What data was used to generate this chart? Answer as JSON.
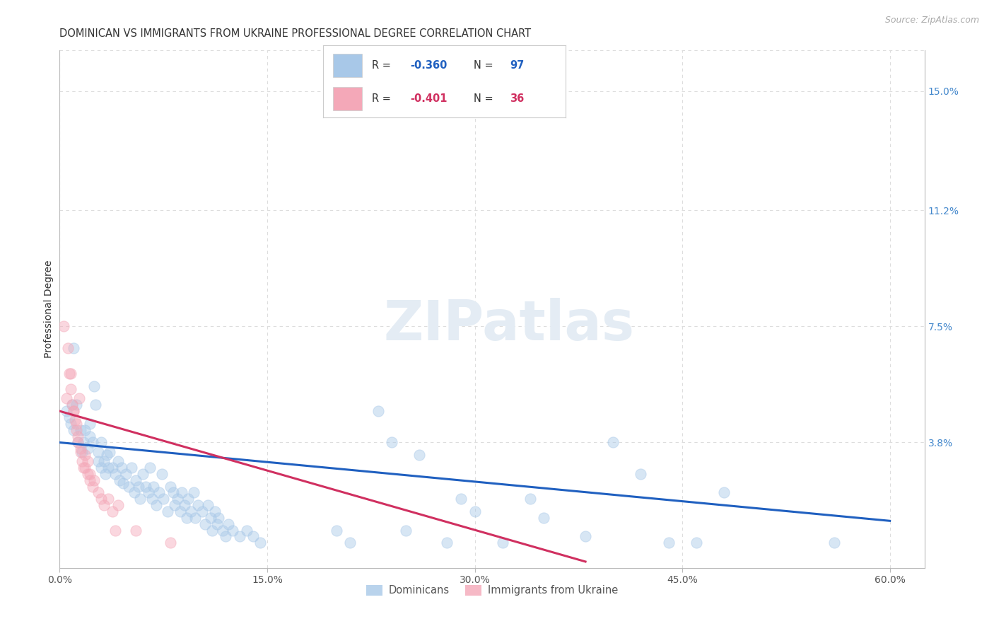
{
  "title": "DOMINICAN VS IMMIGRANTS FROM UKRAINE PROFESSIONAL DEGREE CORRELATION CHART",
  "source": "Source: ZipAtlas.com",
  "xlabel_ticks": [
    "0.0%",
    "15.0%",
    "30.0%",
    "45.0%",
    "60.0%"
  ],
  "xlabel_tick_vals": [
    0.0,
    0.15,
    0.3,
    0.45,
    0.6
  ],
  "ylabel": "Professional Degree",
  "ylabel_right_ticks": [
    "15.0%",
    "11.2%",
    "7.5%",
    "3.8%"
  ],
  "ylabel_right_vals": [
    0.15,
    0.112,
    0.075,
    0.038
  ],
  "xlim": [
    0.0,
    0.625
  ],
  "ylim": [
    -0.002,
    0.163
  ],
  "watermark": "ZIPatlas",
  "legend": {
    "series1_label": "Dominicans",
    "series1_R": "R = -0.360",
    "series1_N": "N = 97",
    "series1_color": "#a8c8e8",
    "series2_label": "Immigrants from Ukraine",
    "series2_R": "R = -0.401",
    "series2_N": "N = 36",
    "series2_color": "#f4a8b8"
  },
  "blue_scatter": [
    [
      0.005,
      0.048
    ],
    [
      0.007,
      0.046
    ],
    [
      0.008,
      0.044
    ],
    [
      0.009,
      0.05
    ],
    [
      0.01,
      0.068
    ],
    [
      0.01,
      0.042
    ],
    [
      0.012,
      0.05
    ],
    [
      0.013,
      0.038
    ],
    [
      0.015,
      0.042
    ],
    [
      0.016,
      0.035
    ],
    [
      0.017,
      0.038
    ],
    [
      0.018,
      0.042
    ],
    [
      0.02,
      0.036
    ],
    [
      0.022,
      0.044
    ],
    [
      0.022,
      0.04
    ],
    [
      0.024,
      0.038
    ],
    [
      0.025,
      0.056
    ],
    [
      0.026,
      0.05
    ],
    [
      0.028,
      0.032
    ],
    [
      0.028,
      0.035
    ],
    [
      0.03,
      0.03
    ],
    [
      0.03,
      0.038
    ],
    [
      0.032,
      0.032
    ],
    [
      0.033,
      0.028
    ],
    [
      0.034,
      0.034
    ],
    [
      0.035,
      0.03
    ],
    [
      0.036,
      0.035
    ],
    [
      0.038,
      0.03
    ],
    [
      0.04,
      0.028
    ],
    [
      0.042,
      0.032
    ],
    [
      0.043,
      0.026
    ],
    [
      0.045,
      0.03
    ],
    [
      0.046,
      0.025
    ],
    [
      0.048,
      0.028
    ],
    [
      0.05,
      0.024
    ],
    [
      0.052,
      0.03
    ],
    [
      0.054,
      0.022
    ],
    [
      0.055,
      0.026
    ],
    [
      0.057,
      0.024
    ],
    [
      0.058,
      0.02
    ],
    [
      0.06,
      0.028
    ],
    [
      0.062,
      0.024
    ],
    [
      0.064,
      0.022
    ],
    [
      0.065,
      0.03
    ],
    [
      0.067,
      0.02
    ],
    [
      0.068,
      0.024
    ],
    [
      0.07,
      0.018
    ],
    [
      0.072,
      0.022
    ],
    [
      0.074,
      0.028
    ],
    [
      0.075,
      0.02
    ],
    [
      0.078,
      0.016
    ],
    [
      0.08,
      0.024
    ],
    [
      0.082,
      0.022
    ],
    [
      0.083,
      0.018
    ],
    [
      0.085,
      0.02
    ],
    [
      0.087,
      0.016
    ],
    [
      0.088,
      0.022
    ],
    [
      0.09,
      0.018
    ],
    [
      0.092,
      0.014
    ],
    [
      0.093,
      0.02
    ],
    [
      0.095,
      0.016
    ],
    [
      0.097,
      0.022
    ],
    [
      0.098,
      0.014
    ],
    [
      0.1,
      0.018
    ],
    [
      0.103,
      0.016
    ],
    [
      0.105,
      0.012
    ],
    [
      0.107,
      0.018
    ],
    [
      0.109,
      0.014
    ],
    [
      0.11,
      0.01
    ],
    [
      0.112,
      0.016
    ],
    [
      0.114,
      0.012
    ],
    [
      0.115,
      0.014
    ],
    [
      0.118,
      0.01
    ],
    [
      0.12,
      0.008
    ],
    [
      0.122,
      0.012
    ],
    [
      0.125,
      0.01
    ],
    [
      0.13,
      0.008
    ],
    [
      0.135,
      0.01
    ],
    [
      0.14,
      0.008
    ],
    [
      0.145,
      0.006
    ],
    [
      0.2,
      0.01
    ],
    [
      0.21,
      0.006
    ],
    [
      0.23,
      0.048
    ],
    [
      0.24,
      0.038
    ],
    [
      0.25,
      0.01
    ],
    [
      0.26,
      0.034
    ],
    [
      0.28,
      0.006
    ],
    [
      0.29,
      0.02
    ],
    [
      0.3,
      0.016
    ],
    [
      0.32,
      0.006
    ],
    [
      0.34,
      0.02
    ],
    [
      0.35,
      0.014
    ],
    [
      0.38,
      0.008
    ],
    [
      0.4,
      0.038
    ],
    [
      0.42,
      0.028
    ],
    [
      0.44,
      0.006
    ],
    [
      0.46,
      0.006
    ],
    [
      0.48,
      0.022
    ],
    [
      0.56,
      0.006
    ]
  ],
  "pink_scatter": [
    [
      0.003,
      0.075
    ],
    [
      0.005,
      0.052
    ],
    [
      0.006,
      0.068
    ],
    [
      0.007,
      0.06
    ],
    [
      0.008,
      0.06
    ],
    [
      0.008,
      0.055
    ],
    [
      0.009,
      0.05
    ],
    [
      0.01,
      0.048
    ],
    [
      0.01,
      0.048
    ],
    [
      0.011,
      0.045
    ],
    [
      0.012,
      0.044
    ],
    [
      0.012,
      0.042
    ],
    [
      0.013,
      0.04
    ],
    [
      0.013,
      0.038
    ],
    [
      0.014,
      0.052
    ],
    [
      0.015,
      0.036
    ],
    [
      0.015,
      0.035
    ],
    [
      0.016,
      0.032
    ],
    [
      0.017,
      0.03
    ],
    [
      0.018,
      0.034
    ],
    [
      0.018,
      0.03
    ],
    [
      0.02,
      0.028
    ],
    [
      0.02,
      0.032
    ],
    [
      0.022,
      0.028
    ],
    [
      0.022,
      0.026
    ],
    [
      0.024,
      0.024
    ],
    [
      0.025,
      0.026
    ],
    [
      0.028,
      0.022
    ],
    [
      0.03,
      0.02
    ],
    [
      0.032,
      0.018
    ],
    [
      0.035,
      0.02
    ],
    [
      0.038,
      0.016
    ],
    [
      0.04,
      0.01
    ],
    [
      0.042,
      0.018
    ],
    [
      0.055,
      0.01
    ],
    [
      0.08,
      0.006
    ]
  ],
  "blue_line": {
    "x0": 0.0,
    "y0": 0.038,
    "x1": 0.6,
    "y1": 0.013
  },
  "pink_line": {
    "x0": 0.0,
    "y0": 0.048,
    "x1": 0.38,
    "y1": 0.0
  },
  "grid_color": "#dddddd",
  "bg_color": "#ffffff",
  "scatter_size": 120,
  "scatter_alpha": 0.45,
  "blue_line_color": "#2060c0",
  "pink_line_color": "#d03060",
  "title_fontsize": 11,
  "axis_label_fontsize": 10
}
